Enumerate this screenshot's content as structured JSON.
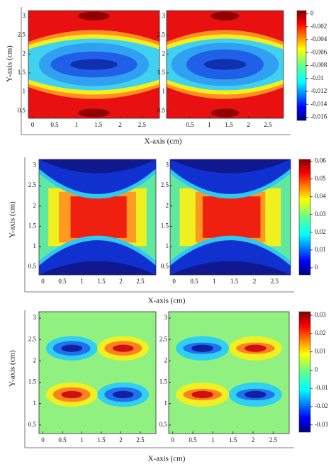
{
  "chart_data": [
    {
      "type": "contour",
      "x_label": "X-axis (cm)",
      "y_label": "Y-axis (cm)",
      "colormap": "jet",
      "colorbar": {
        "zlim": [
          -0.0165,
          0.0005
        ],
        "ticks": [
          0,
          -0.002,
          -0.004,
          -0.006,
          -0.008,
          -0.01,
          -0.012,
          -0.014,
          -0.016
        ]
      },
      "panels": [
        {
          "xlim": [
            -0.1,
            2.9
          ],
          "ylim": [
            0.3,
            3.15
          ],
          "xticks": [
            0,
            0.5,
            1,
            1.5,
            2,
            2.5
          ],
          "yticks": [
            0.5,
            1,
            1.5,
            2,
            2.5,
            3
          ]
        },
        {
          "xlim": [
            -0.1,
            2.9
          ],
          "ylim": [
            0.3,
            3.15
          ],
          "xticks": [
            0.5,
            1,
            1.5,
            2,
            2.5
          ],
          "yticks": [
            0.5,
            1,
            1.5,
            2,
            2.5,
            3
          ]
        }
      ]
    },
    {
      "type": "contour",
      "x_label": "X-axis (cm)",
      "y_label": "Y-axis (cm)",
      "colormap": "jet",
      "colorbar": {
        "zlim": [
          -0.004,
          0.061
        ],
        "ticks": [
          0,
          0.01,
          0.02,
          0.03,
          0.04,
          0.05,
          0.06
        ]
      },
      "panels": [
        {
          "xlim": [
            -0.1,
            2.9
          ],
          "ylim": [
            0.3,
            3.15
          ],
          "xticks": [
            0,
            0.5,
            1,
            1.5,
            2,
            2.5
          ],
          "yticks": [
            0.5,
            1,
            1.5,
            2,
            2.5,
            3
          ]
        },
        {
          "xlim": [
            -0.1,
            2.9
          ],
          "ylim": [
            0.3,
            3.15
          ],
          "xticks": [
            0,
            0.5,
            1,
            1.5,
            2,
            2.5
          ],
          "yticks": [
            0.5,
            1,
            1.5,
            2,
            2.5,
            3
          ]
        }
      ]
    },
    {
      "type": "contour",
      "x_label": "X-axis (cm)",
      "y_label": "Y-axis (cm)",
      "colormap": "jet",
      "colorbar": {
        "zlim": [
          -0.034,
          0.032
        ],
        "ticks": [
          -0.03,
          -0.02,
          -0.01,
          0,
          0.01,
          0.02,
          0.03
        ]
      },
      "panels": [
        {
          "xlim": [
            -0.1,
            2.9
          ],
          "ylim": [
            0.3,
            3.15
          ],
          "xticks": [
            0,
            0.5,
            1,
            1.5,
            2,
            2.5
          ],
          "yticks": [
            0.5,
            1,
            1.5,
            2,
            2.5,
            3
          ]
        },
        {
          "xlim": [
            -0.1,
            2.9
          ],
          "ylim": [
            0.3,
            3.15
          ],
          "xticks": [
            0,
            0.5,
            1,
            1.5,
            2,
            2.5
          ],
          "yticks": [
            0.5,
            1,
            1.5,
            2,
            2.5,
            3
          ]
        }
      ]
    }
  ]
}
